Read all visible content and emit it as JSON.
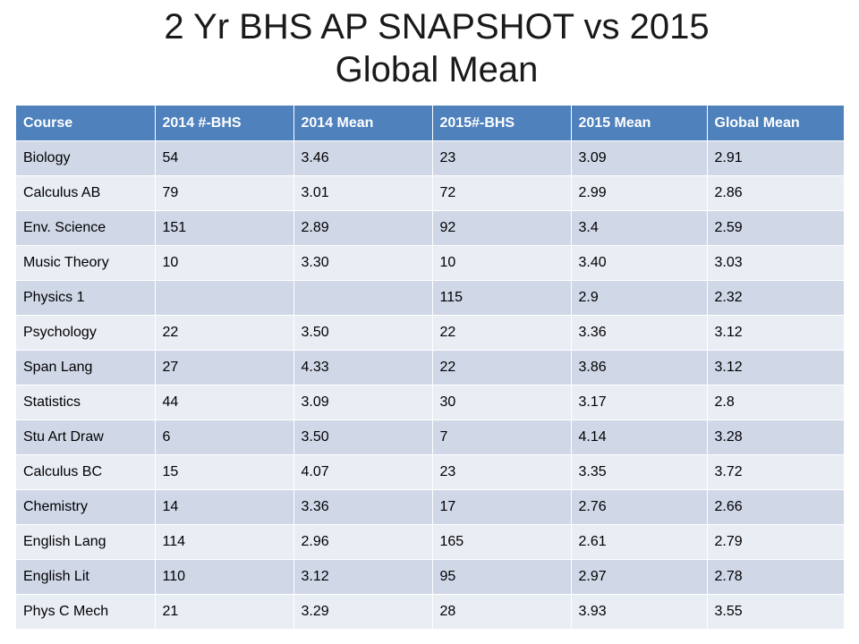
{
  "title": {
    "line1": "2 Yr BHS AP SNAPSHOT vs 2015",
    "line2": "Global Mean"
  },
  "table": {
    "headers": [
      "Course",
      "2014 #-BHS",
      "2014 Mean",
      "2015#-BHS",
      "2015 Mean",
      "Global Mean"
    ],
    "rows": [
      [
        "Biology",
        "54",
        "3.46",
        "23",
        "3.09",
        "2.91"
      ],
      [
        "Calculus AB",
        "79",
        "3.01",
        "72",
        "2.99",
        "2.86"
      ],
      [
        "Env. Science",
        "151",
        "2.89",
        "92",
        "3.4",
        "2.59"
      ],
      [
        "Music Theory",
        "10",
        "3.30",
        "10",
        "3.40",
        "3.03"
      ],
      [
        "Physics 1",
        "",
        "",
        "115",
        "2.9",
        "2.32"
      ],
      [
        "Psychology",
        "22",
        "3.50",
        "22",
        "3.36",
        "3.12"
      ],
      [
        "Span Lang",
        "27",
        "4.33",
        "22",
        "3.86",
        "3.12"
      ],
      [
        "Statistics",
        "44",
        "3.09",
        "30",
        "3.17",
        "2.8"
      ],
      [
        "Stu Art Draw",
        "6",
        "3.50",
        "7",
        "4.14",
        "3.28"
      ],
      [
        "Calculus BC",
        "15",
        "4.07",
        "23",
        "3.35",
        "3.72"
      ],
      [
        "Chemistry",
        "14",
        "3.36",
        "17",
        "2.76",
        "2.66"
      ],
      [
        "English Lang",
        "114",
        "2.96",
        "165",
        "2.61",
        "2.79"
      ],
      [
        "English Lit",
        "110",
        "3.12",
        "95",
        "2.97",
        "2.78"
      ],
      [
        "Phys C Mech",
        "21",
        "3.29",
        "28",
        "3.93",
        "3.55"
      ]
    ]
  },
  "colors": {
    "header_bg": "#4f81bd",
    "row_odd_bg": "#d0d8e8",
    "row_even_bg": "#e9edf4"
  }
}
